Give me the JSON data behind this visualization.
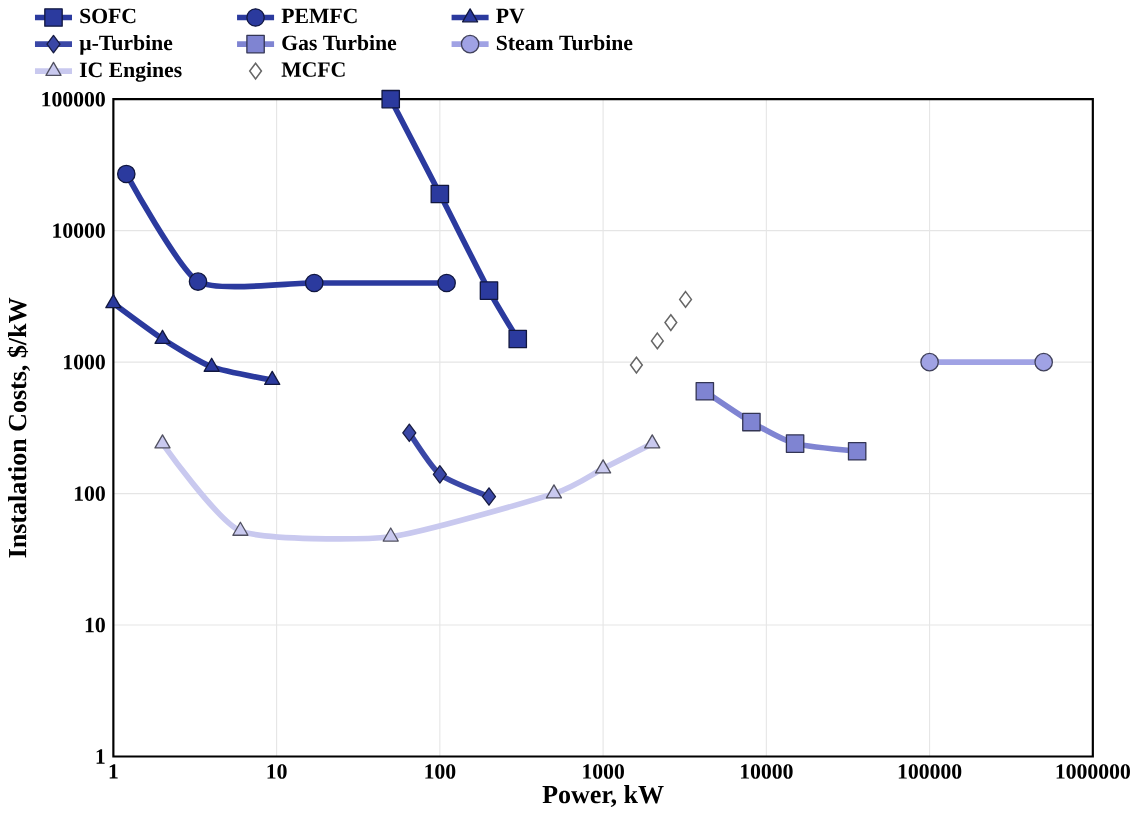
{
  "chart_data": {
    "type": "line",
    "xlabel": "Power, kW",
    "ylabel": "Instalation Costs, $/kW",
    "log": "xy",
    "grid": true,
    "legend": "top",
    "line_style": "solid",
    "xlim": [
      1,
      1000000
    ],
    "ylim": [
      1,
      100000
    ],
    "xticks": [
      1,
      10,
      100,
      1000,
      10000,
      100000,
      1000000
    ],
    "yticks": [
      1,
      10,
      100,
      1000,
      10000,
      100000
    ],
    "series": [
      {
        "name": "SOFC",
        "color": "#2b3a9e",
        "marker": "square",
        "x": [
          50,
          100,
          200,
          300
        ],
        "values": [
          100000,
          19000,
          3500,
          1500
        ]
      },
      {
        "name": "PEMFC",
        "color": "#2b3a9e",
        "marker": "circle",
        "x": [
          1.2,
          3.3,
          17,
          110
        ],
        "values": [
          27000,
          4100,
          4000,
          4000
        ]
      },
      {
        "name": "PV",
        "color": "#2b3a9e",
        "marker": "triangle",
        "x": [
          1,
          2,
          4,
          9.4
        ],
        "values": [
          2800,
          1500,
          920,
          730
        ]
      },
      {
        "name": "µ-Turbine",
        "color": "#3a47a6",
        "marker": "diamond",
        "x": [
          65,
          100,
          200
        ],
        "values": [
          290,
          140,
          95
        ]
      },
      {
        "name": "Gas Turbine",
        "color": "#7f84d2",
        "marker": "square",
        "x": [
          4200,
          8100,
          15000,
          36000
        ],
        "values": [
          600,
          350,
          240,
          210
        ]
      },
      {
        "name": "Steam Turbine",
        "color": "#a0a2e4",
        "marker": "circle",
        "x": [
          100000,
          500000
        ],
        "values": [
          1000,
          1000
        ]
      },
      {
        "name": "IC Engines",
        "color": "#c9c9ef",
        "marker": "triangle",
        "x": [
          2,
          6,
          50,
          500,
          1000,
          2000
        ],
        "values": [
          240,
          52,
          47,
          100,
          155,
          240
        ]
      },
      {
        "name": "MCFC",
        "type": "scatter",
        "color": "#ffffff",
        "marker": "diamond",
        "x": [
          1600,
          2150,
          2600,
          3200
        ],
        "values": [
          950,
          1450,
          2000,
          3000
        ]
      }
    ]
  }
}
